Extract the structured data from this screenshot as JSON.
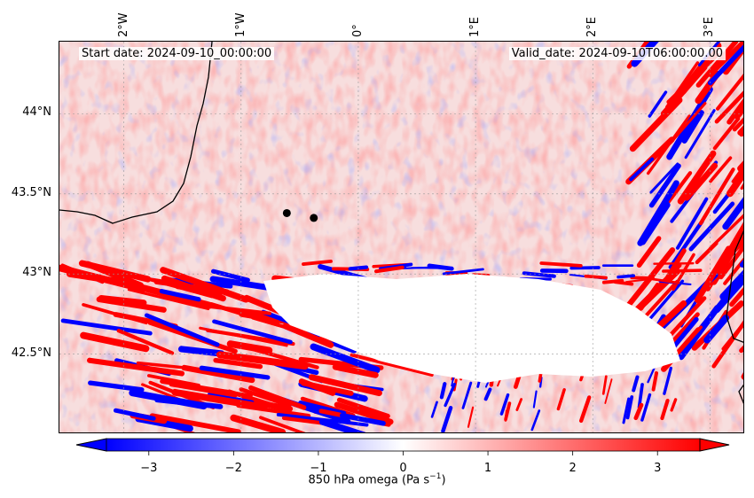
{
  "header": {
    "start_date": "Start date: 2024-09-10_00:00:00",
    "valid_date": "Valid_date: 2024-09-10T06:00:00.00"
  },
  "axes": {
    "lon_labels": [
      "2°W",
      "1°W",
      "0°",
      "1°E",
      "2°E",
      "3°E"
    ],
    "lat_labels": [
      "44°N",
      "43.5°N",
      "43°N",
      "42.5°N"
    ]
  },
  "colorbar": {
    "title": "850 hPa omega (Pa s",
    "title_sup": "−1",
    "title_end": ")",
    "ticks": [
      "−3",
      "−2",
      "−1",
      "0",
      "1",
      "2",
      "3"
    ],
    "tick_values": [
      -3,
      -2,
      -1,
      0,
      1,
      2,
      3
    ],
    "range": [
      -3.5,
      3.5
    ],
    "colormap": "bwr",
    "colors": {
      "low": "#0000ff",
      "mid": "#ffffff",
      "high": "#ff0000"
    }
  },
  "map": {
    "field": "850 hPa omega",
    "extent_lon": [
      -2.55,
      3.3
    ],
    "extent_lat": [
      42.0,
      44.45
    ],
    "markers": [
      {
        "lon": -0.61,
        "lat": 43.38
      },
      {
        "lon": -0.38,
        "lat": 43.35
      }
    ],
    "masked_region_color": "#ffffff",
    "gridlines": "dotted"
  }
}
